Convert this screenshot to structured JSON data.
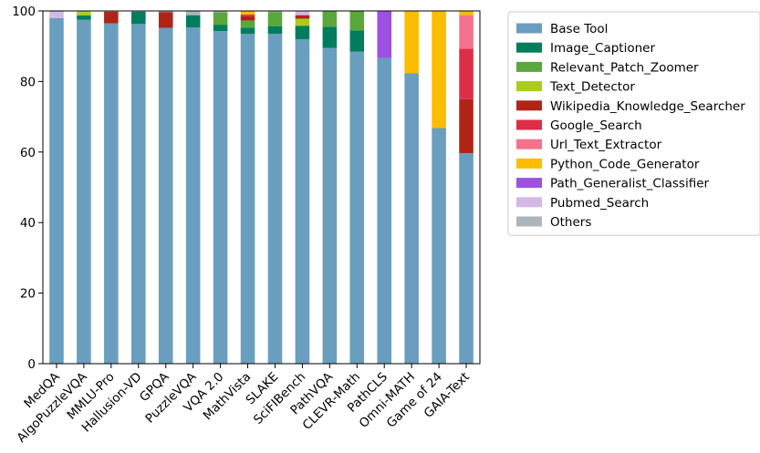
{
  "chart_data": {
    "type": "bar",
    "stacked": true,
    "ylim": [
      0,
      100
    ],
    "yticks": [
      0,
      20,
      40,
      60,
      80,
      100
    ],
    "grid": false,
    "legend_position": "right",
    "title": "",
    "xlabel": "",
    "ylabel": "",
    "categories": [
      "MedQA",
      "AlgoPuzzleVQA",
      "MMLU-Pro",
      "Hallusion-VD",
      "GPQA",
      "PuzzleVQA",
      "VQA 2.0",
      "MathVista",
      "SLAKE",
      "SciFIBench",
      "PathVQA",
      "CLEVR-Math",
      "PathCLS",
      "Omni-MATH",
      "Game of 24",
      "GAIA-Text"
    ],
    "series": [
      {
        "name": "Base Tool",
        "color": "#6a9ebe",
        "values": [
          98.0,
          97.5,
          96.5,
          96.3,
          95.2,
          95.3,
          94.3,
          93.5,
          93.5,
          92.0,
          89.5,
          88.5,
          86.7,
          82.3,
          66.8,
          59.7
        ]
      },
      {
        "name": "Image_Captioner",
        "color": "#007d5c",
        "values": [
          0,
          1.2,
          0,
          3.5,
          0,
          3.5,
          1.8,
          1.8,
          2.2,
          3.8,
          6.0,
          6.0,
          0,
          0,
          0,
          0
        ]
      },
      {
        "name": "Relevant_Patch_Zoomer",
        "color": "#5aa83c",
        "values": [
          0,
          0,
          0,
          0,
          0,
          0,
          3.5,
          2.0,
          4.0,
          0,
          4.5,
          5.5,
          0,
          0,
          0,
          0
        ]
      },
      {
        "name": "Text_Detector",
        "color": "#aacc1a",
        "values": [
          0,
          1.0,
          0,
          0,
          0,
          0,
          0,
          0,
          0,
          2.0,
          0,
          0,
          0,
          0,
          0,
          0
        ]
      },
      {
        "name": "Wikipedia_Knowledge_Searcher",
        "color": "#b02418",
        "values": [
          0,
          0,
          3.3,
          0,
          4.5,
          0,
          0,
          1.2,
          0,
          1.0,
          0,
          0,
          0,
          0,
          0,
          15.3
        ]
      },
      {
        "name": "Google_Search",
        "color": "#dd2e48",
        "values": [
          0,
          0,
          0,
          0,
          0,
          0,
          0,
          0.5,
          0,
          0,
          0,
          0,
          0,
          0,
          0,
          14.3
        ]
      },
      {
        "name": "Url_Text_Extractor",
        "color": "#f5728d",
        "values": [
          0,
          0,
          0,
          0,
          0,
          0,
          0,
          0,
          0,
          0,
          0,
          0,
          0,
          0,
          0,
          9.5
        ]
      },
      {
        "name": "Python_Code_Generator",
        "color": "#fcbc00",
        "values": [
          0,
          0,
          0,
          0,
          0,
          0,
          0,
          1.0,
          0,
          0,
          0,
          0,
          0,
          17.7,
          33.2,
          1.2
        ]
      },
      {
        "name": "Path_Generalist_Classifier",
        "color": "#9c51e0",
        "values": [
          0,
          0,
          0,
          0,
          0,
          0,
          0,
          0,
          0,
          0,
          0,
          0,
          13.3,
          0,
          0,
          0
        ]
      },
      {
        "name": "Pubmed_Search",
        "color": "#d3b8e6",
        "values": [
          1.7,
          0,
          0,
          0,
          0,
          0,
          0,
          0,
          0,
          1.2,
          0,
          0,
          0,
          0,
          0,
          0
        ]
      },
      {
        "name": "Others",
        "color": "#adb5bd",
        "values": [
          0.3,
          0.3,
          0.2,
          0.2,
          0.3,
          1.2,
          0.4,
          0,
          0.3,
          0,
          0,
          0,
          0,
          0,
          0,
          0
        ]
      }
    ]
  }
}
